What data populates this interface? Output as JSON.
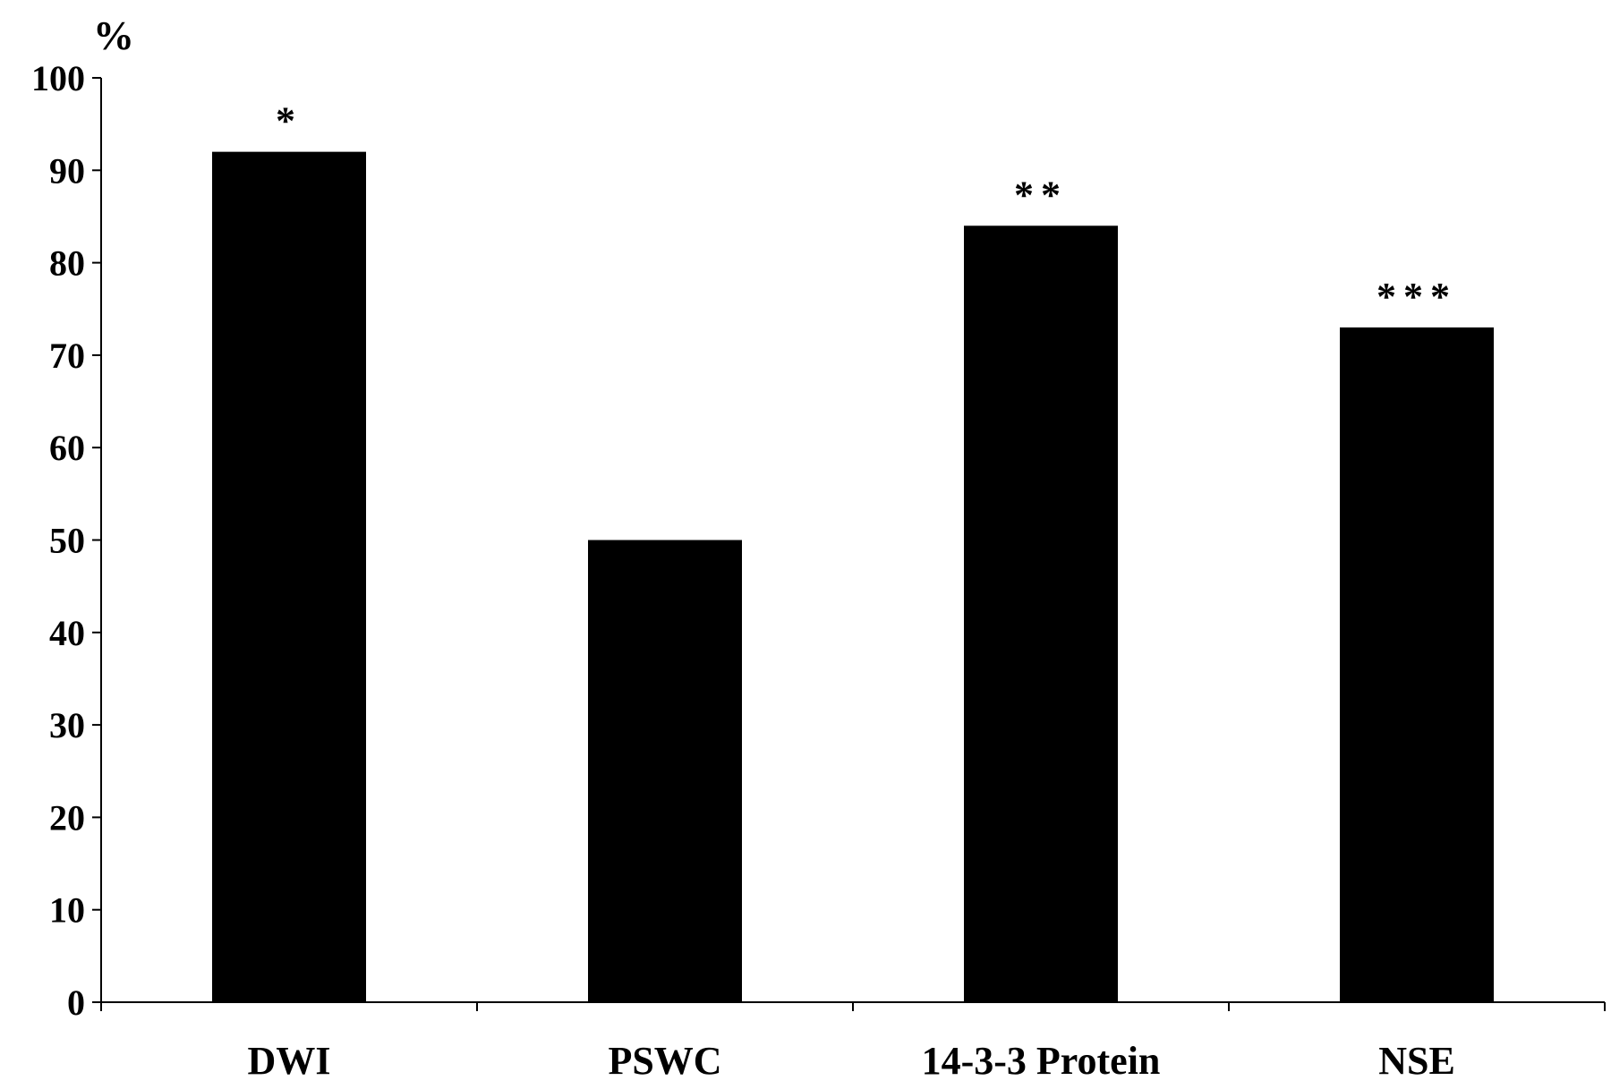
{
  "chart_data": {
    "type": "bar",
    "categories": [
      "DWI",
      "PSWC",
      "14-3-3 Protein",
      "NSE"
    ],
    "values": [
      92,
      50,
      84,
      73
    ],
    "annotations": [
      "*",
      "",
      "**",
      "***"
    ],
    "ylabel": "%",
    "ylim": [
      0,
      100
    ],
    "yticks": [
      "0",
      "10",
      "20",
      "30",
      "40",
      "50",
      "60",
      "70",
      "80",
      "90",
      "100"
    ],
    "grid": false,
    "bar_color": "#000000"
  }
}
